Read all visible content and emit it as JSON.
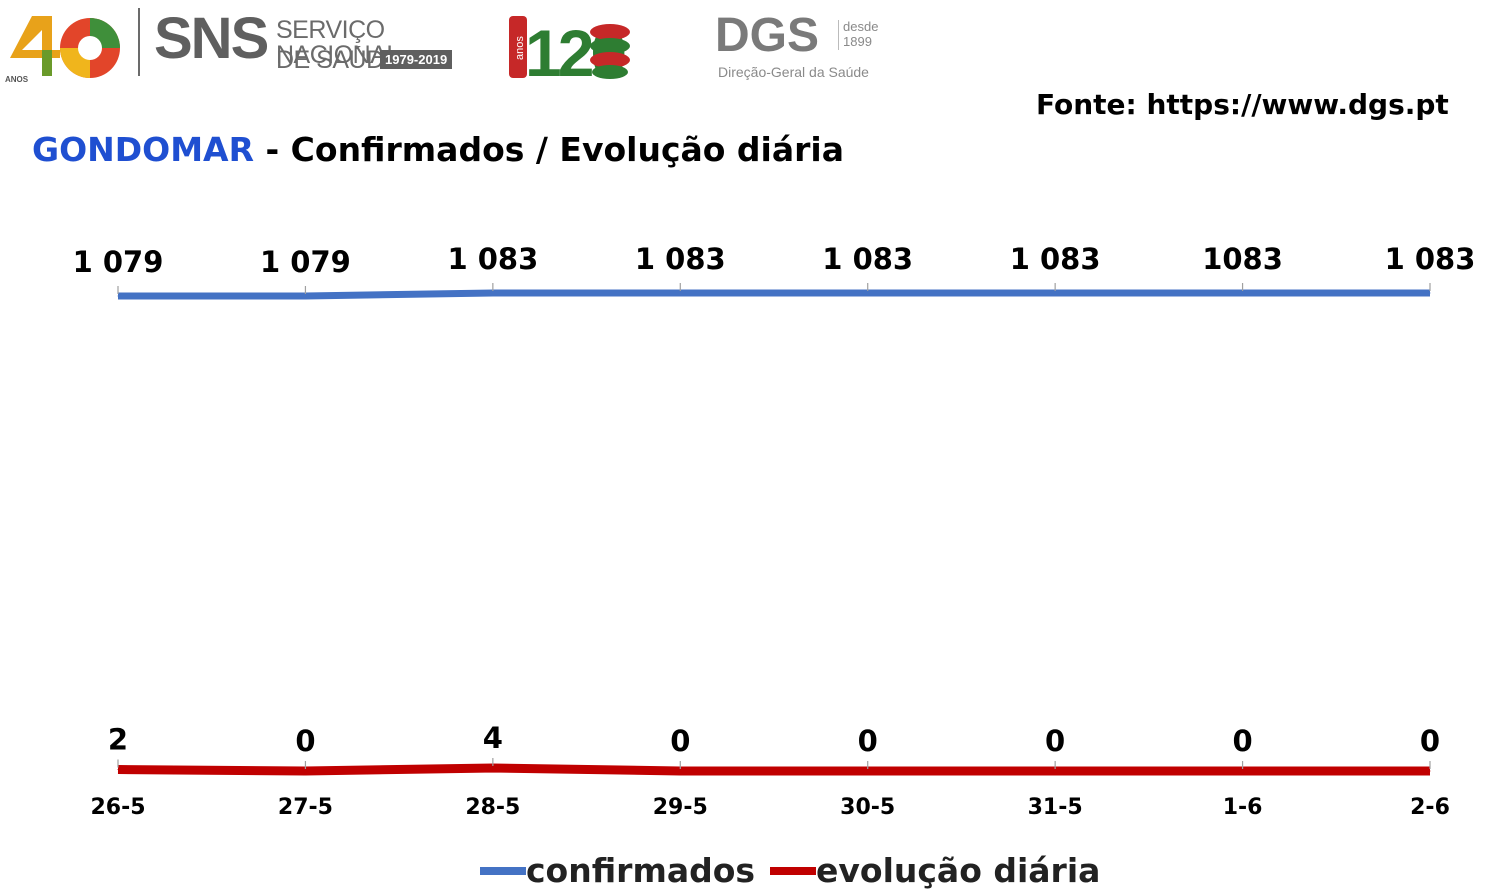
{
  "header": {
    "logo_40": {
      "digits": "40",
      "small": "ANOS"
    },
    "sns": {
      "abbr": "SNS",
      "line1": "SERVIÇO NACIONAL",
      "line2": "DE SAÚDE",
      "years": "1979-2019"
    },
    "logo_120": {
      "digits": "120",
      "small": "anos"
    },
    "dgs": {
      "abbr": "DGS",
      "desde": "desde",
      "year": "1899",
      "full": "Direção-Geral da Saúde"
    }
  },
  "source": "Fonte: https://www.dgs.pt",
  "title": {
    "place": "GONDOMAR",
    "rest": " - Confirmados / Evolução diária"
  },
  "colors": {
    "confirmados": "#4472c4",
    "evolucao": "#c00000",
    "place": "#1f4fd1"
  },
  "chart_data": {
    "type": "line",
    "categories": [
      "26-5",
      "27-5",
      "28-5",
      "29-5",
      "30-5",
      "31-5",
      "1-6",
      "2-6"
    ],
    "series": [
      {
        "name": "confirmados",
        "values": [
          1079,
          1079,
          1083,
          1083,
          1083,
          1083,
          1083,
          1083
        ],
        "labels": [
          "1 079",
          "1 079",
          "1 083",
          "1 083",
          "1 083",
          "1 083",
          "1083",
          "1 083"
        ]
      },
      {
        "name": "evolução diária",
        "values": [
          2,
          0,
          4,
          0,
          0,
          0,
          0,
          0
        ],
        "labels": [
          "2",
          "0",
          "4",
          "0",
          "0",
          "0",
          "0",
          "0"
        ]
      }
    ],
    "legend_position": "bottom",
    "grid": false
  },
  "legend": [
    {
      "label": "confirmados",
      "color": "#4472c4"
    },
    {
      "label": "evolução diária",
      "color": "#c00000"
    }
  ]
}
